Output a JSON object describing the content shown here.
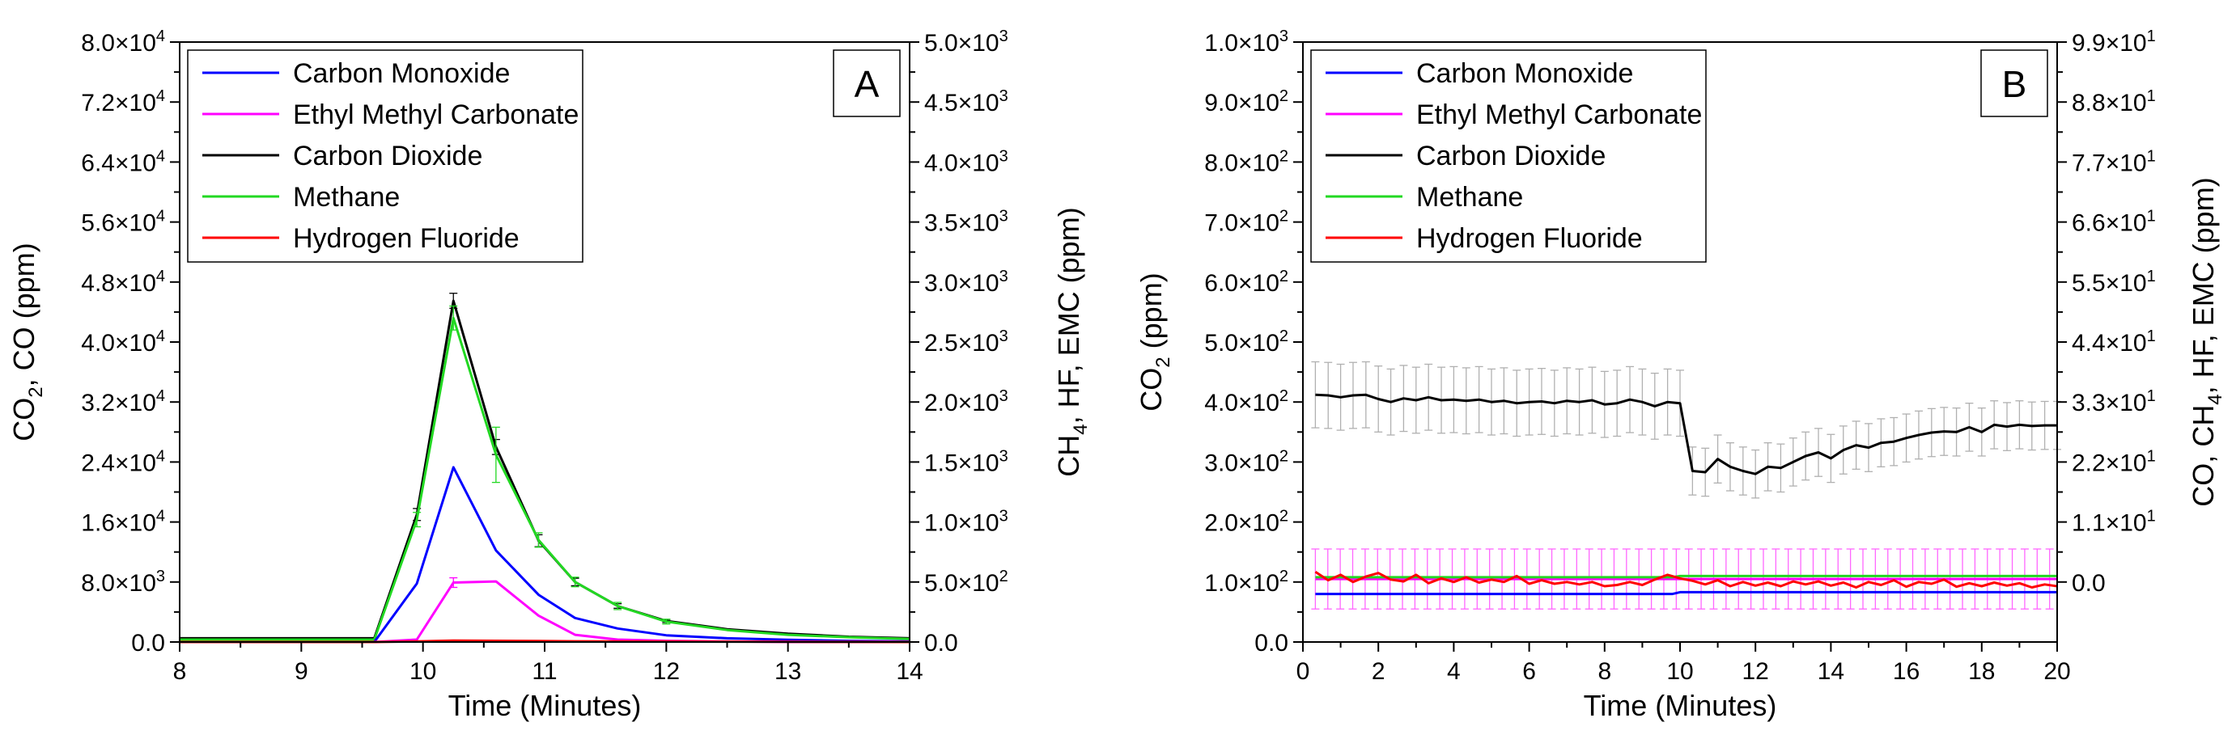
{
  "chart_data": [
    {
      "panel": "A",
      "type": "line",
      "panel_label": "A",
      "xlabel": "Time (Minutes)",
      "ylabel_left": {
        "main": "CO",
        "sub": "2",
        "rest": ", CO (ppm)"
      },
      "ylabel_right": {
        "main": "CH",
        "sub": "4",
        "rest": ", HF, EMC (ppm)"
      },
      "xlim": [
        8,
        14
      ],
      "ylim_left": [
        0,
        80000
      ],
      "ylim_right": [
        0,
        5000
      ],
      "x_ticks": [
        8,
        9,
        10,
        11,
        12,
        13,
        14
      ],
      "x_tick_labels": [
        "8",
        "9",
        "10",
        "11",
        "12",
        "13",
        "14"
      ],
      "y_left_ticks": [
        0,
        8000,
        16000,
        24000,
        32000,
        40000,
        48000,
        56000,
        64000,
        72000,
        80000
      ],
      "y_left_tick_labels": [
        {
          "text": "0.0",
          "exp": ""
        },
        {
          "text": "8.0×10",
          "exp": "3"
        },
        {
          "text": "1.6×10",
          "exp": "4"
        },
        {
          "text": "2.4×10",
          "exp": "4"
        },
        {
          "text": "3.2×10",
          "exp": "4"
        },
        {
          "text": "4.0×10",
          "exp": "4"
        },
        {
          "text": "4.8×10",
          "exp": "4"
        },
        {
          "text": "5.6×10",
          "exp": "4"
        },
        {
          "text": "6.4×10",
          "exp": "4"
        },
        {
          "text": "7.2×10",
          "exp": "4"
        },
        {
          "text": "8.0×10",
          "exp": "4"
        }
      ],
      "y_right_ticks": [
        0,
        500,
        1000,
        1500,
        2000,
        2500,
        3000,
        3500,
        4000,
        4500,
        5000
      ],
      "y_right_tick_labels": [
        {
          "text": "0.0",
          "exp": ""
        },
        {
          "text": "5.0×10",
          "exp": "2"
        },
        {
          "text": "1.0×10",
          "exp": "3"
        },
        {
          "text": "1.5×10",
          "exp": "3"
        },
        {
          "text": "2.0×10",
          "exp": "3"
        },
        {
          "text": "2.5×10",
          "exp": "3"
        },
        {
          "text": "3.0×10",
          "exp": "3"
        },
        {
          "text": "3.5×10",
          "exp": "3"
        },
        {
          "text": "4.0×10",
          "exp": "3"
        },
        {
          "text": "4.5×10",
          "exp": "3"
        },
        {
          "text": "5.0×10",
          "exp": "3"
        }
      ],
      "legend": [
        "Carbon Monoxide",
        "Ethyl Methyl Carbonate",
        "Carbon Dioxide",
        "Methane",
        "Hydrogen Fluoride"
      ],
      "legend_position": "top-left",
      "series": [
        {
          "name": "Carbon Dioxide",
          "color": "#000000",
          "axis": "left",
          "x": [
            8,
            9.6,
            9.95,
            10.25,
            10.6,
            10.95,
            11.25,
            11.6,
            12,
            12.5,
            13,
            13.5,
            14
          ],
          "y": [
            500,
            500,
            17000,
            45500,
            26000,
            13500,
            8000,
            4800,
            2800,
            1700,
            1100,
            700,
            500
          ],
          "err": [
            0,
            0,
            800,
            1000,
            1000,
            800,
            500,
            300,
            200,
            0,
            0,
            0,
            0
          ]
        },
        {
          "name": "Methane",
          "color": "#22d822",
          "axis": "right",
          "x": [
            8,
            9.6,
            9.95,
            10.25,
            10.6,
            10.95,
            11.25,
            11.6,
            12,
            12.5,
            13,
            13.5,
            14
          ],
          "y": [
            20,
            20,
            1020,
            2700,
            1560,
            850,
            500,
            300,
            170,
            100,
            60,
            40,
            25
          ],
          "err": [
            0,
            0,
            60,
            100,
            230,
            60,
            40,
            30,
            20,
            0,
            0,
            0,
            0
          ]
        },
        {
          "name": "Carbon Monoxide",
          "color": "#0000ff",
          "axis": "left",
          "x": [
            8,
            9.6,
            9.95,
            10.25,
            10.6,
            10.95,
            11.25,
            11.6,
            12,
            12.5,
            13,
            13.5,
            14
          ],
          "y": [
            0,
            0,
            7800,
            23300,
            12200,
            6300,
            3200,
            1800,
            900,
            500,
            300,
            150,
            80
          ],
          "err": [
            0,
            0,
            0,
            0,
            0,
            0,
            0,
            0,
            0,
            0,
            0,
            0,
            0
          ]
        },
        {
          "name": "Ethyl Methyl Carbonate",
          "color": "#ff00ff",
          "axis": "right",
          "x": [
            8,
            9.6,
            9.95,
            10.25,
            10.6,
            10.95,
            11.25,
            11.6,
            12,
            12.5,
            13,
            13.5,
            14
          ],
          "y": [
            0,
            0,
            20,
            495,
            505,
            220,
            60,
            20,
            10,
            5,
            0,
            0,
            0
          ],
          "err": [
            0,
            0,
            0,
            40,
            0,
            0,
            0,
            0,
            0,
            0,
            0,
            0,
            0
          ]
        },
        {
          "name": "Hydrogen Fluoride",
          "color": "#ff0000",
          "axis": "right",
          "x": [
            8,
            9.6,
            9.95,
            10.25,
            10.6,
            10.95,
            11.25,
            11.6,
            12,
            12.5,
            13,
            13.5,
            14
          ],
          "y": [
            0,
            0,
            5,
            12,
            10,
            8,
            6,
            5,
            4,
            3,
            2,
            1,
            0
          ],
          "err": [
            0,
            0,
            0,
            0,
            0,
            0,
            0,
            0,
            0,
            0,
            0,
            0,
            0
          ]
        }
      ]
    },
    {
      "panel": "B",
      "type": "line",
      "panel_label": "B",
      "xlabel": "Time (Minutes)",
      "ylabel_left": {
        "main": "CO",
        "sub": "2",
        "rest": " (ppm)"
      },
      "ylabel_right": {
        "main": "CO, CH",
        "sub": "4",
        "rest": ", HF, EMC (ppm)"
      },
      "xlim": [
        0,
        20
      ],
      "ylim_left": [
        0,
        1000
      ],
      "ylim_right": [
        -11,
        99
      ],
      "x_ticks": [
        0,
        2,
        4,
        6,
        8,
        10,
        12,
        14,
        16,
        18,
        20
      ],
      "x_tick_labels": [
        "0",
        "2",
        "4",
        "6",
        "8",
        "10",
        "12",
        "14",
        "16",
        "18",
        "20"
      ],
      "y_left_ticks": [
        0,
        100,
        200,
        300,
        400,
        500,
        600,
        700,
        800,
        900,
        1000
      ],
      "y_left_tick_labels": [
        {
          "text": "0.0",
          "exp": ""
        },
        {
          "text": "1.0×10",
          "exp": "2"
        },
        {
          "text": "2.0×10",
          "exp": "2"
        },
        {
          "text": "3.0×10",
          "exp": "2"
        },
        {
          "text": "4.0×10",
          "exp": "2"
        },
        {
          "text": "5.0×10",
          "exp": "2"
        },
        {
          "text": "6.0×10",
          "exp": "2"
        },
        {
          "text": "7.0×10",
          "exp": "2"
        },
        {
          "text": "8.0×10",
          "exp": "2"
        },
        {
          "text": "9.0×10",
          "exp": "2"
        },
        {
          "text": "1.0×10",
          "exp": "3"
        }
      ],
      "y_right_ticks": [
        0,
        11,
        22,
        33,
        44,
        55,
        66,
        77,
        88,
        99
      ],
      "y_right_tick_labels": [
        {
          "text": "0.0",
          "exp": ""
        },
        {
          "text": "1.1×10",
          "exp": "1"
        },
        {
          "text": "2.2×10",
          "exp": "1"
        },
        {
          "text": "3.3×10",
          "exp": "1"
        },
        {
          "text": "4.4×10",
          "exp": "1"
        },
        {
          "text": "5.5×10",
          "exp": "1"
        },
        {
          "text": "6.6×10",
          "exp": "1"
        },
        {
          "text": "7.7×10",
          "exp": "1"
        },
        {
          "text": "8.8×10",
          "exp": "1"
        },
        {
          "text": "9.9×10",
          "exp": "1"
        }
      ],
      "legend": [
        "Carbon Monoxide",
        "Ethyl Methyl Carbonate",
        "Carbon Dioxide",
        "Methane",
        "Hydrogen Fluoride"
      ],
      "legend_position": "top-left",
      "series": [
        {
          "name": "Ethyl Methyl Carbonate",
          "color": "#ff00ff",
          "axis": "left",
          "err_color": "#ff66ff",
          "x": [
            0.33,
            20
          ],
          "y": [
            105,
            105
          ],
          "err_const": 50,
          "err_step": 0.33
        },
        {
          "name": "Carbon Dioxide",
          "color": "#000000",
          "axis": "left",
          "err_color": "#b0b0b0",
          "x": [
            0.33,
            0.67,
            1,
            1.33,
            1.67,
            2,
            2.33,
            2.67,
            3,
            3.33,
            3.67,
            4,
            4.33,
            4.67,
            5,
            5.33,
            5.67,
            6,
            6.33,
            6.67,
            7,
            7.33,
            7.67,
            8,
            8.33,
            8.67,
            9,
            9.33,
            9.67,
            10,
            10.33,
            10.67,
            11,
            11.33,
            11.67,
            12,
            12.33,
            12.67,
            13,
            13.33,
            13.67,
            14,
            14.33,
            14.67,
            15,
            15.33,
            15.67,
            16,
            16.33,
            16.67,
            17,
            17.33,
            17.67,
            18,
            18.33,
            18.67,
            19,
            19.33,
            19.67,
            20
          ],
          "y": [
            412,
            411,
            408,
            411,
            412,
            405,
            400,
            406,
            403,
            408,
            403,
            404,
            402,
            404,
            400,
            402,
            398,
            400,
            401,
            398,
            402,
            400,
            403,
            396,
            398,
            404,
            400,
            393,
            400,
            398,
            285,
            283,
            305,
            292,
            285,
            280,
            292,
            290,
            300,
            310,
            316,
            306,
            320,
            328,
            324,
            332,
            334,
            340,
            345,
            349,
            351,
            350,
            358,
            350,
            362,
            359,
            362,
            360,
            361,
            361
          ],
          "err": [
            55,
            55,
            55,
            55,
            55,
            55,
            55,
            55,
            55,
            55,
            55,
            55,
            55,
            55,
            55,
            55,
            55,
            55,
            55,
            55,
            55,
            55,
            55,
            55,
            55,
            55,
            55,
            55,
            55,
            55,
            40,
            40,
            40,
            40,
            40,
            40,
            40,
            40,
            40,
            40,
            40,
            40,
            40,
            40,
            40,
            40,
            40,
            40,
            40,
            40,
            40,
            40,
            40,
            40,
            40,
            40,
            40,
            40,
            40,
            40
          ]
        },
        {
          "name": "Methane",
          "color": "#22d822",
          "axis": "left",
          "x": [
            0.33,
            9.8,
            10,
            20
          ],
          "y": [
            108,
            108,
            110,
            110
          ]
        },
        {
          "name": "Hydrogen Fluoride",
          "color": "#ff0000",
          "axis": "left",
          "x": [
            0.33,
            0.67,
            1,
            1.33,
            1.67,
            2,
            2.33,
            2.67,
            3,
            3.33,
            3.67,
            4,
            4.33,
            4.67,
            5,
            5.33,
            5.67,
            6,
            6.33,
            6.67,
            7,
            7.33,
            7.67,
            8,
            8.33,
            8.67,
            9,
            9.33,
            9.67,
            10,
            10.33,
            10.67,
            11,
            11.33,
            11.67,
            12,
            12.33,
            12.67,
            13,
            13.33,
            13.67,
            14,
            14.33,
            14.67,
            15,
            15.33,
            15.67,
            16,
            16.33,
            16.67,
            17,
            17.33,
            17.67,
            18,
            18.33,
            18.67,
            19,
            19.33,
            19.67,
            20
          ],
          "y": [
            117,
            103,
            112,
            100,
            109,
            115,
            104,
            101,
            112,
            98,
            106,
            100,
            108,
            99,
            104,
            100,
            110,
            97,
            103,
            97,
            100,
            96,
            100,
            93,
            95,
            100,
            95,
            104,
            112,
            106,
            102,
            96,
            103,
            93,
            100,
            94,
            99,
            93,
            101,
            96,
            101,
            94,
            99,
            91,
            100,
            95,
            103,
            92,
            100,
            97,
            104,
            92,
            98,
            93,
            99,
            94,
            98,
            91,
            96,
            93
          ]
        },
        {
          "name": "Carbon Monoxide",
          "color": "#0000ff",
          "axis": "left",
          "x": [
            0.33,
            9.8,
            10,
            20
          ],
          "y": [
            80,
            80,
            83,
            83
          ]
        }
      ]
    }
  ]
}
